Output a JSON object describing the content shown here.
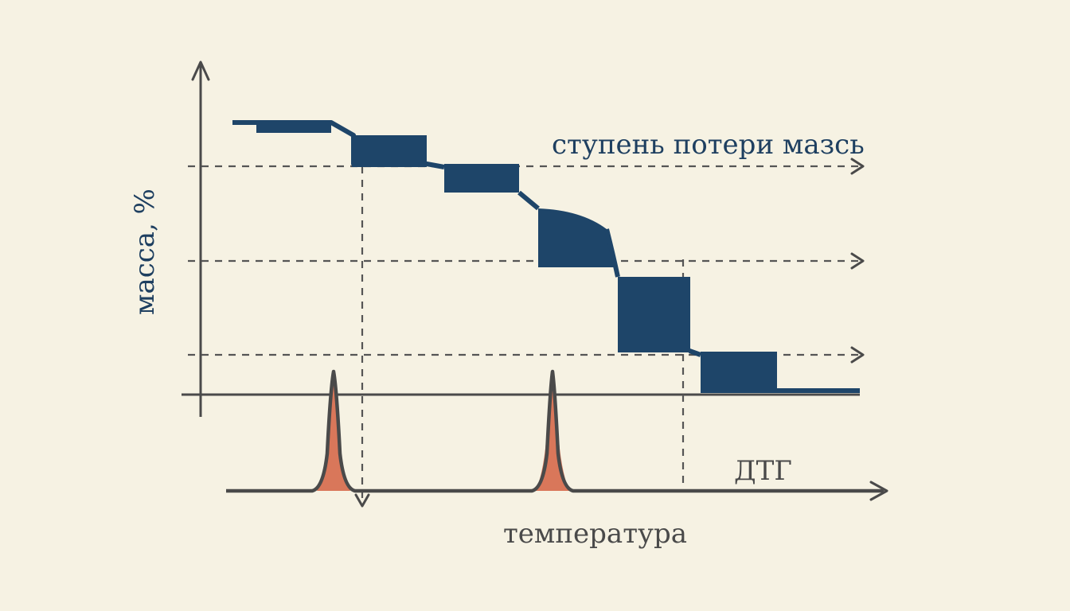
{
  "labels": {
    "y_axis": "масса, %",
    "step_label": "ступень потери мазсь",
    "dtg_label": "ДТГ",
    "x_axis": "температура"
  },
  "colors": {
    "background": "#f6f2e3",
    "step_fill": "#1e4569",
    "peak_fill": "#d9775a",
    "axis": "#4a4a4a"
  }
}
